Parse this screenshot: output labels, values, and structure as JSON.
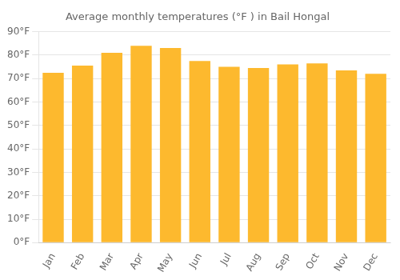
{
  "chart_data": {
    "type": "bar",
    "title": "Average monthly temperatures (°F ) in Bail Hongal",
    "categories": [
      "Jan",
      "Feb",
      "Mar",
      "Apr",
      "May",
      "Jun",
      "Jul",
      "Aug",
      "Sep",
      "Oct",
      "Nov",
      "Dec"
    ],
    "values": [
      72.5,
      75.5,
      81,
      84,
      83,
      77.5,
      75,
      74.5,
      76,
      76.5,
      73.5,
      72
    ],
    "color": "#FDB92E",
    "ylim": [
      0,
      90
    ],
    "yticks": [
      {
        "value": 0,
        "label": "0°F"
      },
      {
        "value": 10,
        "label": "10°F"
      },
      {
        "value": 20,
        "label": "20°F"
      },
      {
        "value": 30,
        "label": "30°F"
      },
      {
        "value": 40,
        "label": "40°F"
      },
      {
        "value": 50,
        "label": "50°F"
      },
      {
        "value": 60,
        "label": "60°F"
      },
      {
        "value": 70,
        "label": "70°F"
      },
      {
        "value": 80,
        "label": "80°F"
      },
      {
        "value": 90,
        "label": "90°F"
      }
    ],
    "grid": true
  }
}
